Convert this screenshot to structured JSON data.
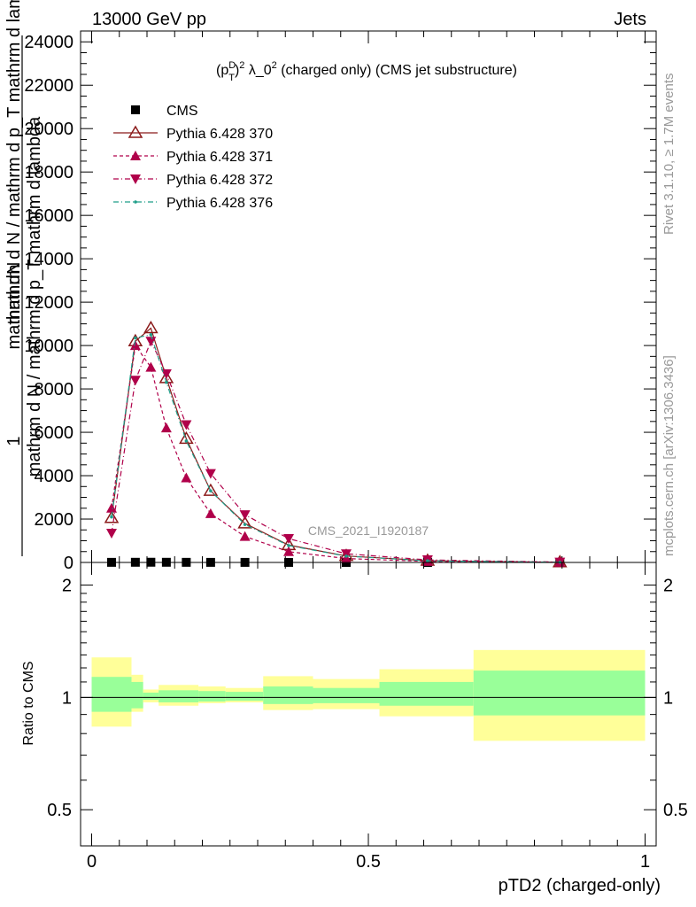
{
  "header": {
    "left": "13000 GeV pp",
    "right": "Jets"
  },
  "side_labels": {
    "rivet": "Rivet 3.1.10, ≥ 1.7M events",
    "mcplots": "mcplots.cern.ch [arXiv:1306.3436]"
  },
  "colors": {
    "cms": "#000000",
    "p370": "#8b1a1a",
    "p371": "#b0004a",
    "p372": "#b0004a",
    "p376": "#1f9e89",
    "band_inner": "#99ff99",
    "band_outer": "#ffff99",
    "watermark": "#999999"
  },
  "chart_data": [
    {
      "type": "line",
      "title": "(p_T^D)^2 λ_0^2 (charged only) (CMS jet substructure)",
      "ylabel": "1 / mathrm d N / mathrm d p_T mathrm d^2N / mathrm d p_T mathrm d lambda",
      "watermark": "CMS_2021_I1920187",
      "xlim": [
        -0.02,
        1.02
      ],
      "ylim": [
        0,
        24500
      ],
      "yticks": [
        0,
        2000,
        4000,
        6000,
        8000,
        10000,
        12000,
        14000,
        16000,
        18000,
        20000,
        22000,
        24000
      ],
      "ytick_labels": [
        "0",
        "2000",
        "4000",
        "6000",
        "8000",
        "10000",
        "12000",
        "14000",
        "16000",
        "18000",
        "20000",
        "22000",
        "24000"
      ],
      "legend_position": "top-left",
      "x": [
        0.036,
        0.079,
        0.107,
        0.135,
        0.171,
        0.215,
        0.277,
        0.356,
        0.46,
        0.607,
        0.846
      ],
      "series": [
        {
          "name": "CMS",
          "marker": "square",
          "values": [
            5,
            8,
            10,
            8,
            6,
            4,
            3,
            2,
            1,
            0.5,
            0.2
          ]
        },
        {
          "name": "Pythia 6.428 370",
          "marker": "triangle-up-open",
          "values": [
            2050,
            10200,
            10800,
            8500,
            5700,
            3300,
            1800,
            800,
            300,
            80,
            10
          ]
        },
        {
          "name": "Pythia 6.428 371",
          "marker": "triangle-up",
          "values": [
            2500,
            10000,
            9000,
            6200,
            3900,
            2250,
            1200,
            500,
            180,
            50,
            8
          ]
        },
        {
          "name": "Pythia 6.428 372",
          "marker": "triangle-down",
          "values": [
            1350,
            8400,
            10200,
            8700,
            6350,
            4100,
            2200,
            1100,
            400,
            120,
            15
          ]
        },
        {
          "name": "Pythia 6.428 376",
          "marker": "dot",
          "values": [
            2100,
            10350,
            10500,
            8300,
            5600,
            3300,
            1750,
            780,
            290,
            75,
            9
          ]
        }
      ]
    },
    {
      "type": "area",
      "ylabel": "Ratio to CMS",
      "xlabel": "pTD2 (charged-only)",
      "xlim": [
        -0.02,
        1.02
      ],
      "ylim": [
        0.4,
        2.3
      ],
      "log_y": true,
      "yticks": [
        0.5,
        1,
        2
      ],
      "ytick_labels": [
        "0.5",
        "1",
        "2"
      ],
      "xticks": [
        0,
        0.5,
        1
      ],
      "xtick_labels": [
        "0",
        "0.5",
        "1"
      ],
      "bins": [
        {
          "x0": 0.0,
          "x1": 0.072,
          "stat": [
            0.915,
            1.135
          ],
          "total": [
            0.835,
            1.28
          ]
        },
        {
          "x0": 0.072,
          "x1": 0.093,
          "stat": [
            0.935,
            1.1
          ],
          "total": [
            0.915,
            1.15
          ]
        },
        {
          "x0": 0.093,
          "x1": 0.121,
          "stat": [
            0.985,
            1.03
          ],
          "total": [
            0.97,
            1.05
          ]
        },
        {
          "x0": 0.121,
          "x1": 0.193,
          "stat": [
            0.97,
            1.045
          ],
          "total": [
            0.95,
            1.08
          ]
        },
        {
          "x0": 0.193,
          "x1": 0.242,
          "stat": [
            0.975,
            1.04
          ],
          "total": [
            0.965,
            1.07
          ]
        },
        {
          "x0": 0.242,
          "x1": 0.31,
          "stat": [
            0.98,
            1.035
          ],
          "total": [
            0.97,
            1.06
          ]
        },
        {
          "x0": 0.31,
          "x1": 0.4,
          "stat": [
            0.96,
            1.07
          ],
          "total": [
            0.925,
            1.14
          ]
        },
        {
          "x0": 0.4,
          "x1": 0.52,
          "stat": [
            0.965,
            1.06
          ],
          "total": [
            0.93,
            1.12
          ]
        },
        {
          "x0": 0.52,
          "x1": 0.69,
          "stat": [
            0.95,
            1.1
          ],
          "total": [
            0.89,
            1.19
          ]
        },
        {
          "x0": 0.69,
          "x1": 1.0,
          "stat": [
            0.895,
            1.18
          ],
          "total": [
            0.765,
            1.34
          ]
        }
      ],
      "reference": 1
    }
  ]
}
